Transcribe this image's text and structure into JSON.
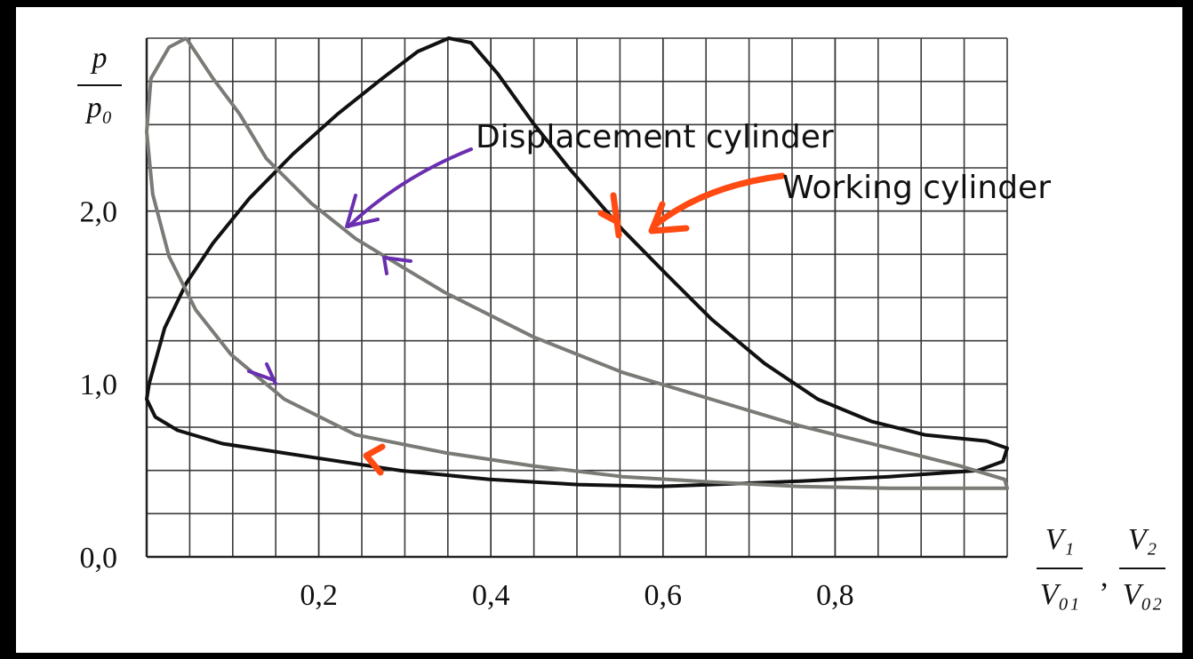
{
  "chart_data": {
    "type": "line",
    "ylabel": {
      "numerator": "p",
      "denominator": "p₀"
    },
    "xlabel": [
      {
        "numerator": "V₁",
        "denominator": "V₀₁"
      },
      {
        "numerator": "V₂",
        "denominator": "V₀₂"
      }
    ],
    "xlabel_separator": ",",
    "xlim": [
      0,
      1
    ],
    "ylim": [
      0,
      3
    ],
    "xticks": [
      {
        "value": 0.2,
        "label": "0,2"
      },
      {
        "value": 0.4,
        "label": "0,4"
      },
      {
        "value": 0.6,
        "label": "0,6"
      },
      {
        "value": 0.8,
        "label": "0,8"
      }
    ],
    "yticks": [
      {
        "value": 0,
        "label": "0,0"
      },
      {
        "value": 1,
        "label": "1,0"
      },
      {
        "value": 2,
        "label": "2,0"
      }
    ],
    "grid": true,
    "series": [
      {
        "name": "Working cylinder",
        "color": "#111111",
        "x": [
          0.003,
          0.021,
          0.046,
          0.077,
          0.119,
          0.17,
          0.222,
          0.274,
          0.315,
          0.351,
          0.377,
          0.408,
          0.449,
          0.49,
          0.553,
          0.604,
          0.656,
          0.718,
          0.78,
          0.842,
          0.904,
          0.976,
          1.0,
          0.995,
          0.966,
          0.863,
          0.759,
          0.656,
          0.594,
          0.501,
          0.398,
          0.294,
          0.191,
          0.088,
          0.036,
          0.01,
          0.0,
          0.003
        ],
        "values": [
          1.005,
          1.325,
          1.582,
          1.814,
          2.072,
          2.33,
          2.562,
          2.768,
          2.923,
          3.0,
          2.974,
          2.794,
          2.51,
          2.253,
          1.892,
          1.634,
          1.376,
          1.119,
          0.912,
          0.784,
          0.706,
          0.67,
          0.629,
          0.552,
          0.5,
          0.464,
          0.438,
          0.418,
          0.407,
          0.418,
          0.448,
          0.5,
          0.577,
          0.655,
          0.732,
          0.809,
          0.912,
          1.005
        ]
      },
      {
        "name": "Displacement cylinder",
        "color": "#7a7a76",
        "x": [
          0.046,
          0.077,
          0.108,
          0.139,
          0.191,
          0.243,
          0.294,
          0.346,
          0.449,
          0.553,
          0.656,
          0.759,
          0.863,
          0.945,
          0.997,
          1.0,
          0.966,
          0.863,
          0.759,
          0.656,
          0.553,
          0.449,
          0.346,
          0.243,
          0.16,
          0.098,
          0.057,
          0.026,
          0.007,
          0.0,
          0.005,
          0.026,
          0.046
        ],
        "values": [
          3.0,
          2.768,
          2.562,
          2.304,
          2.046,
          1.84,
          1.686,
          1.531,
          1.273,
          1.067,
          0.912,
          0.758,
          0.629,
          0.526,
          0.448,
          0.397,
          0.397,
          0.397,
          0.407,
          0.433,
          0.464,
          0.526,
          0.603,
          0.706,
          0.912,
          1.17,
          1.428,
          1.737,
          2.098,
          2.459,
          2.768,
          2.948,
          3.0
        ]
      }
    ]
  }
}
